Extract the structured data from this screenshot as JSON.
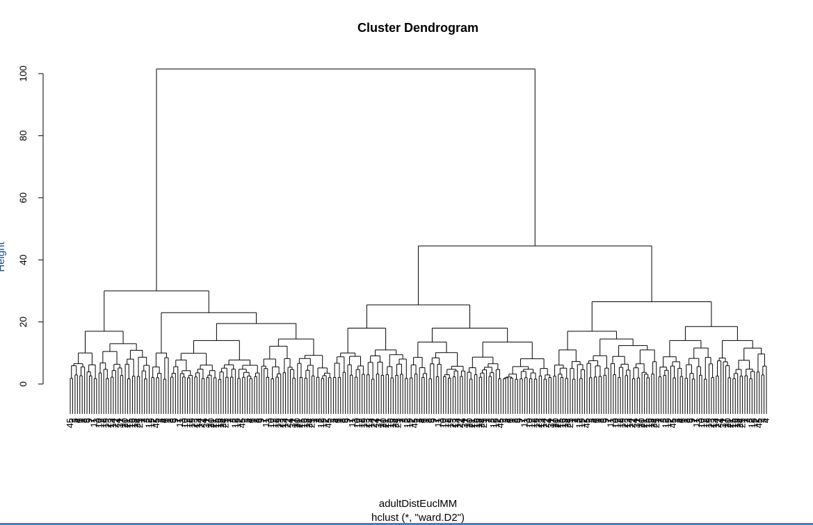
{
  "chart_data": {
    "type": "dendrogram",
    "title": "Cluster Dendrogram",
    "ylabel": "Height",
    "xlabel": "adultDistEuclMM",
    "sub": "hclust (*, \"ward.D2\")",
    "ylim": [
      0,
      100
    ],
    "yticks": [
      0,
      20,
      40,
      60,
      80,
      100
    ],
    "root": {
      "height": 101.5,
      "children": [
        {
          "height": 30,
          "children": [
            {
              "height": 17,
              "children": [
                {
                  "height": 10,
                  "leaves": 12
                },
                {
                  "height": 13,
                  "leaves": 22
                }
              ]
            },
            {
              "height": 23,
              "children": [
                {
                  "height": 10,
                  "leaves": 8
                },
                {
                  "height": 19.5,
                  "children": [
                    {
                      "height": 14,
                      "leaves": 38
                    },
                    {
                      "height": 14.5,
                      "leaves": 30
                    }
                  ]
                }
              ]
            }
          ]
        },
        {
          "height": 44.5,
          "children": [
            {
              "height": 25.5,
              "children": [
                {
                  "height": 18,
                  "children": [
                    {
                      "height": 10,
                      "leaves": 14
                    },
                    {
                      "height": 11,
                      "leaves": 18
                    }
                  ]
                },
                {
                  "height": 18,
                  "children": [
                    {
                      "height": 13.5,
                      "leaves": 24
                    },
                    {
                      "height": 13.5,
                      "leaves": 36
                    }
                  ]
                }
              ]
            },
            {
              "height": 26.5,
              "children": [
                {
                  "height": 17,
                  "children": [
                    {
                      "height": 11,
                      "leaves": 14
                    },
                    {
                      "height": 14.5,
                      "leaves": 30
                    }
                  ]
                },
                {
                  "height": 18.5,
                  "children": [
                    {
                      "height": 14,
                      "leaves": 24
                    },
                    {
                      "height": 14,
                      "leaves": 22
                    }
                  ]
                }
              ]
            }
          ]
        }
      ]
    },
    "leaf_labels_sample": [
      "45",
      "2",
      "3",
      "4",
      "6",
      "1",
      "8",
      "5",
      "9",
      "7",
      "11",
      "3",
      "10",
      "12",
      "2",
      "19",
      "23",
      "13",
      "14",
      "22",
      "4",
      "31",
      "17",
      "20",
      "21",
      "15",
      "16",
      "18",
      "24",
      "25",
      "1",
      "2",
      "3",
      "12",
      "19",
      "2"
    ]
  }
}
